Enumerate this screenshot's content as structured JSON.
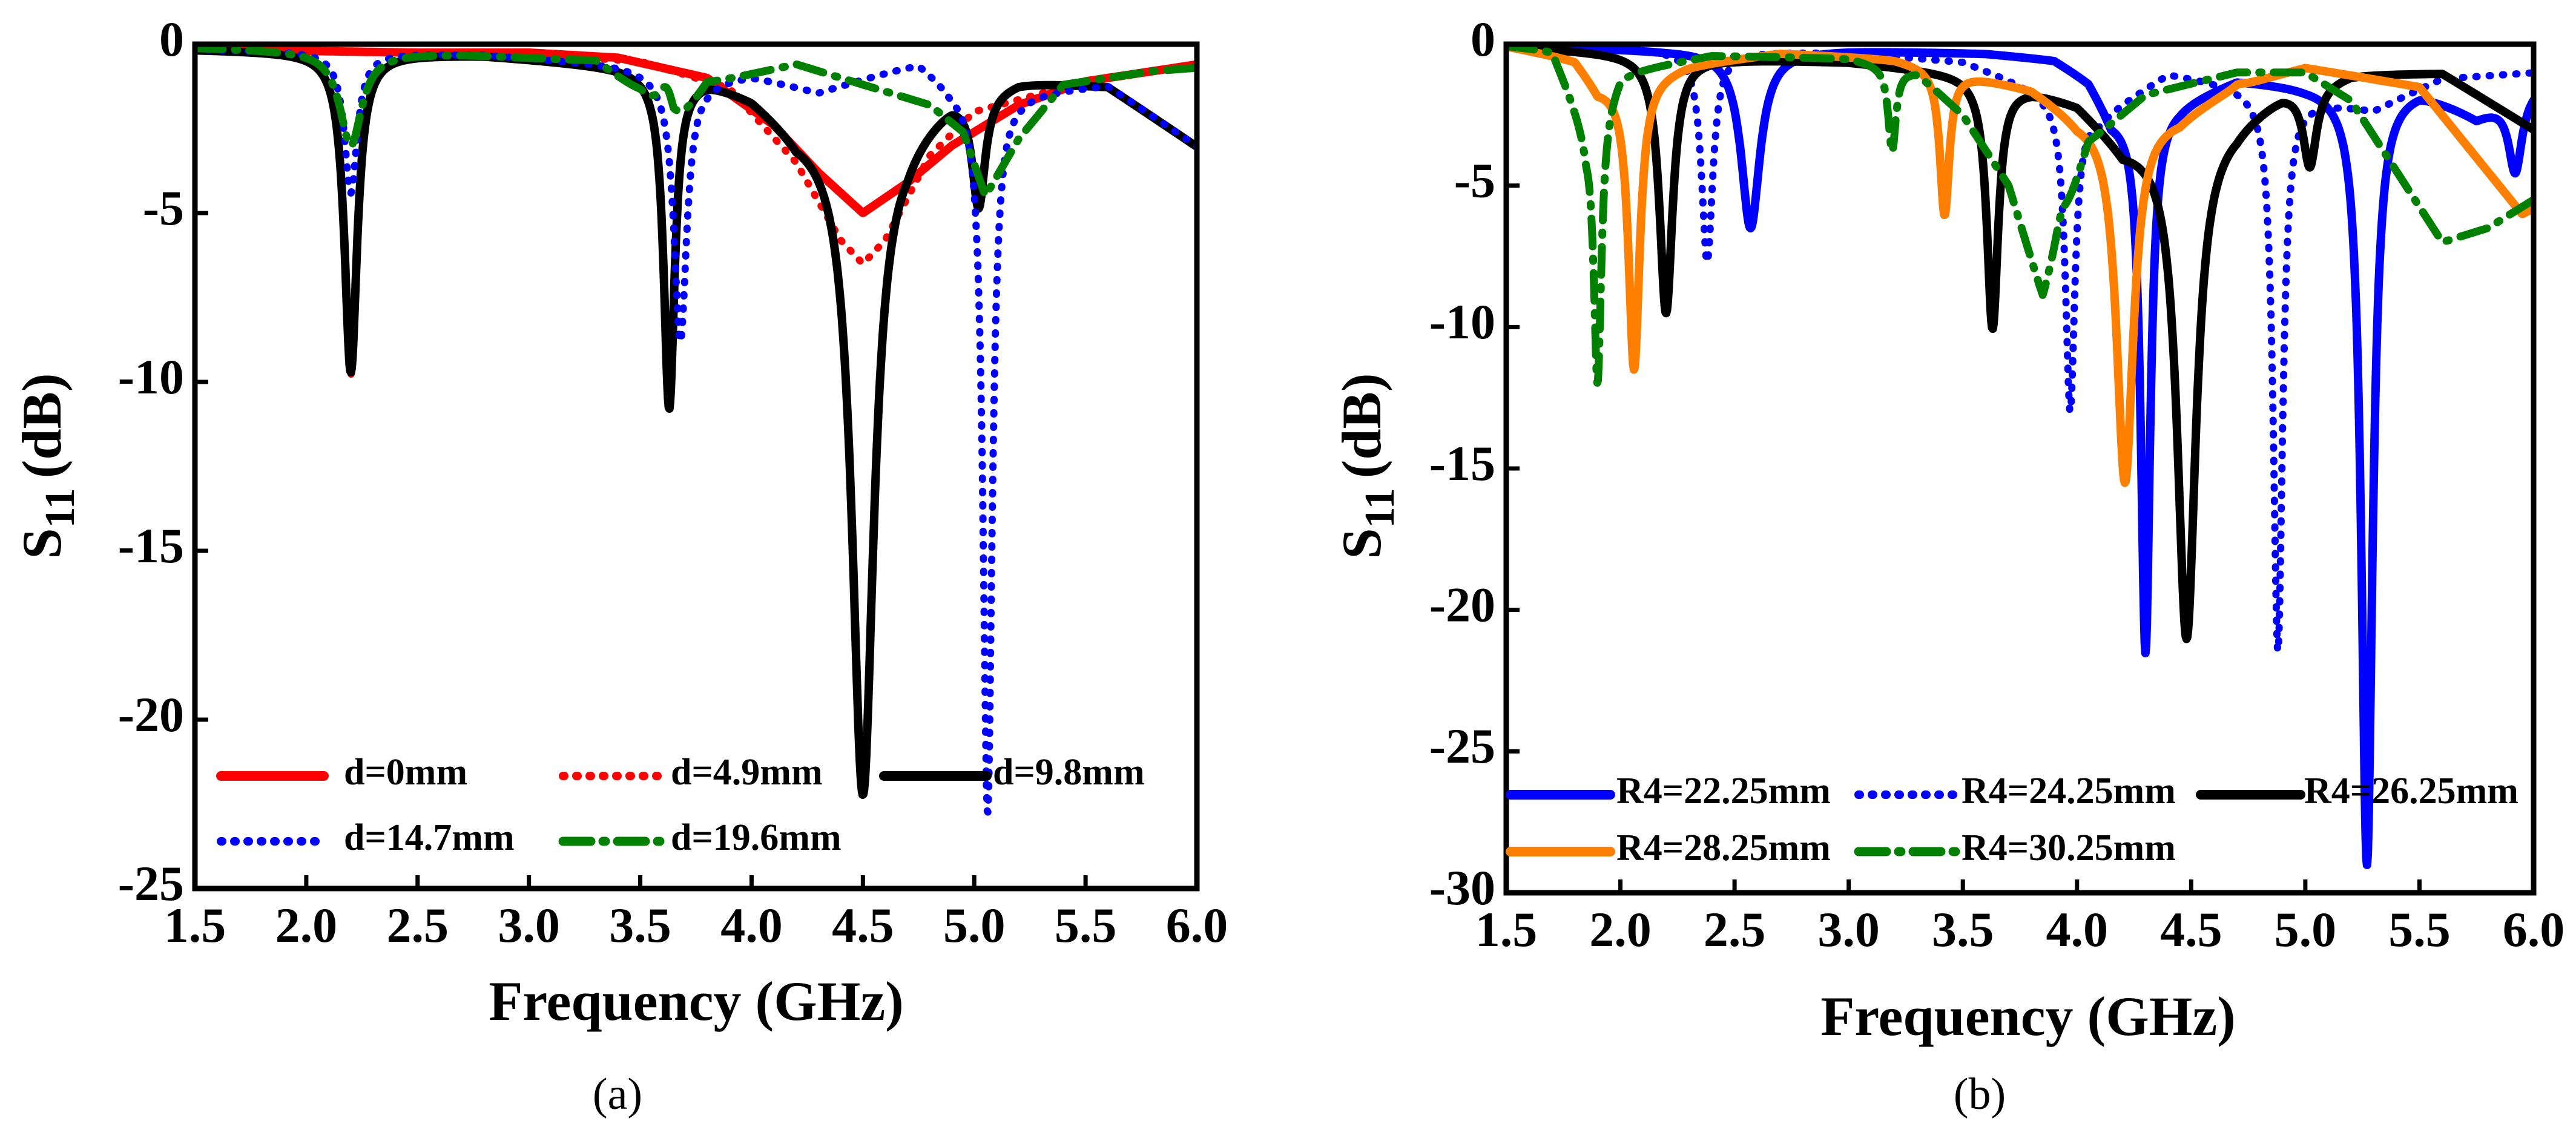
{
  "chart_data": [
    {
      "panel_label": "(a)",
      "type": "line",
      "xlabel": "Frequency (GHz)",
      "ylabel": "S11 (dB)",
      "ylabel_main": "S",
      "ylabel_sub": "11",
      "ylabel_unit": "(dB)",
      "xlim": [
        1.5,
        6.0
      ],
      "ylim": [
        -25,
        0
      ],
      "x_ticks": [
        "1.5",
        "2.0",
        "2.5",
        "3.0",
        "3.5",
        "4.0",
        "4.5",
        "5.0",
        "5.5",
        "6.0"
      ],
      "y_ticks": [
        "0",
        "-5",
        "-10",
        "-15",
        "-20",
        "-25"
      ],
      "grid": false,
      "legend_position": "lower-center",
      "series": [
        {
          "name": "d=0mm",
          "color": "#ff0000",
          "style": "solid",
          "base": [
            [
              1.5,
              -0.1
            ],
            [
              2.0,
              -0.2
            ],
            [
              2.5,
              -0.25
            ],
            [
              3.0,
              -0.25
            ],
            [
              3.4,
              -0.4
            ],
            [
              3.8,
              -1.0
            ],
            [
              4.1,
              -2.4
            ],
            [
              4.3,
              -3.8
            ],
            [
              4.5,
              -5.0
            ],
            [
              4.7,
              -4.1
            ],
            [
              4.9,
              -3.0
            ],
            [
              5.2,
              -1.8
            ],
            [
              5.5,
              -1.1
            ],
            [
              6.0,
              -0.6
            ]
          ],
          "dips": []
        },
        {
          "name": "d=4.9mm",
          "color": "#ff0000",
          "style": "dotted",
          "base": [
            [
              1.5,
              -0.1
            ],
            [
              2.5,
              -0.25
            ],
            [
              3.0,
              -0.3
            ],
            [
              3.5,
              -0.5
            ],
            [
              3.9,
              -1.3
            ],
            [
              4.2,
              -3.5
            ],
            [
              4.4,
              -5.8
            ],
            [
              4.5,
              -6.5
            ],
            [
              4.6,
              -5.8
            ],
            [
              4.8,
              -3.3
            ],
            [
              5.0,
              -2.0
            ],
            [
              5.5,
              -1.1
            ],
            [
              6.0,
              -0.6
            ]
          ],
          "dips": [
            [
              2.2,
              -9.8,
              0.035
            ]
          ]
        },
        {
          "name": "d=9.8mm",
          "color": "#000000",
          "style": "solid",
          "base": [
            [
              1.5,
              -0.15
            ],
            [
              2.8,
              -0.3
            ],
            [
              3.4,
              -0.6
            ],
            [
              3.8,
              -0.9
            ],
            [
              4.0,
              -1.4
            ],
            [
              4.2,
              -2.4
            ],
            [
              4.7,
              -2.4
            ],
            [
              4.9,
              -1.4
            ],
            [
              5.2,
              -1.0
            ],
            [
              5.6,
              -1.2
            ],
            [
              6.0,
              -3.0
            ]
          ],
          "dips": [
            [
              2.2,
              -9.7,
              0.035
            ],
            [
              3.63,
              -10.7,
              0.03
            ],
            [
              4.5,
              -22.2,
              0.06
            ],
            [
              5.02,
              -4.6,
              0.035
            ]
          ]
        },
        {
          "name": "d=14.7mm",
          "color": "#0000ff",
          "style": "dotted",
          "base": [
            [
              1.5,
              -0.15
            ],
            [
              2.8,
              -0.3
            ],
            [
              3.4,
              -0.6
            ],
            [
              3.8,
              -1.0
            ],
            [
              4.0,
              -0.9
            ],
            [
              4.3,
              -1.4
            ],
            [
              4.5,
              -1.0
            ],
            [
              4.75,
              -0.5
            ],
            [
              4.9,
              -1.2
            ],
            [
              5.2,
              -1.4
            ],
            [
              5.6,
              -1.2
            ],
            [
              6.0,
              -3.0
            ]
          ],
          "dips": [
            [
              2.2,
              -4.4,
              0.035
            ],
            [
              3.68,
              -8.8,
              0.035
            ],
            [
              5.06,
              -22.8,
              0.025
            ]
          ]
        },
        {
          "name": "d=19.6mm",
          "color": "#008000",
          "style": "dashdot",
          "base": [
            [
              1.5,
              -0.1
            ],
            [
              2.7,
              -0.3
            ],
            [
              3.3,
              -0.5
            ],
            [
              3.5,
              -1.5
            ],
            [
              3.65,
              -2.8
            ],
            [
              3.8,
              -1.2
            ],
            [
              4.2,
              -0.6
            ],
            [
              4.5,
              -1.2
            ],
            [
              4.8,
              -1.8
            ],
            [
              4.95,
              -2.6
            ],
            [
              5.05,
              -4.5
            ],
            [
              5.2,
              -2.8
            ],
            [
              5.4,
              -1.2
            ],
            [
              5.8,
              -0.8
            ],
            [
              6.0,
              -0.7
            ]
          ],
          "dips": [
            [
              2.2,
              -3.0,
              0.06
            ],
            [
              3.62,
              -1.3,
              0.05
            ]
          ]
        }
      ]
    },
    {
      "panel_label": "(b)",
      "type": "line",
      "xlabel": "Frequency (GHz)",
      "ylabel": "S11 (dB)",
      "ylabel_main": "S",
      "ylabel_sub": "11",
      "ylabel_unit": "(dB)",
      "xlim": [
        1.5,
        6.0
      ],
      "ylim": [
        -30,
        0
      ],
      "x_ticks": [
        "1.5",
        "2.0",
        "2.5",
        "3.0",
        "3.5",
        "4.0",
        "4.5",
        "5.0",
        "5.5",
        "6.0"
      ],
      "y_ticks": [
        "0",
        "-5",
        "-10",
        "-15",
        "-20",
        "-25",
        "-30"
      ],
      "grid": false,
      "legend_position": "lower-left",
      "series": [
        {
          "name": "R4=22.25mm",
          "color": "#0000ff",
          "style": "solid",
          "base": [
            [
              1.5,
              -0.05
            ],
            [
              2.2,
              -0.2
            ],
            [
              3.0,
              -0.2
            ],
            [
              3.6,
              -0.3
            ],
            [
              3.9,
              -0.5
            ],
            [
              4.05,
              -1.2
            ],
            [
              4.15,
              -2.5
            ],
            [
              4.45,
              -2.0
            ],
            [
              4.7,
              -1.2
            ],
            [
              5.0,
              -1.4
            ],
            [
              5.5,
              -1.5
            ],
            [
              5.75,
              -2.5
            ],
            [
              6.0,
              -1.5
            ]
          ],
          "dips": [
            [
              2.57,
              -6.5,
              0.05
            ],
            [
              4.3,
              -21.5,
              0.025
            ],
            [
              5.27,
              -29.0,
              0.03
            ],
            [
              5.92,
              -4.5,
              0.035
            ]
          ]
        },
        {
          "name": "R4=24.25mm",
          "color": "#0000ff",
          "style": "dotted",
          "base": [
            [
              1.5,
              -0.05
            ],
            [
              2.0,
              -0.15
            ],
            [
              3.0,
              -0.3
            ],
            [
              3.5,
              -0.6
            ],
            [
              3.8,
              -1.5
            ],
            [
              4.1,
              -2.5
            ],
            [
              4.4,
              -1.0
            ],
            [
              4.7,
              -1.4
            ],
            [
              4.95,
              -1.8
            ],
            [
              5.3,
              -2.3
            ],
            [
              5.6,
              -1.2
            ],
            [
              6.0,
              -1.0
            ]
          ],
          "dips": [
            [
              2.38,
              -7.7,
              0.03
            ],
            [
              3.97,
              -13.0,
              0.025
            ],
            [
              4.88,
              -21.5,
              0.025
            ]
          ]
        },
        {
          "name": "R4=26.25mm",
          "color": "#000000",
          "style": "solid",
          "base": [
            [
              1.5,
              -0.05
            ],
            [
              1.8,
              -0.2
            ],
            [
              2.5,
              -0.5
            ],
            [
              3.0,
              -0.6
            ],
            [
              3.5,
              -1.0
            ],
            [
              3.8,
              -1.5
            ],
            [
              4.0,
              -2.0
            ],
            [
              4.2,
              -3.5
            ],
            [
              4.7,
              -2.6
            ],
            [
              4.9,
              -1.6
            ],
            [
              5.2,
              -1.0
            ],
            [
              5.6,
              -1.0
            ],
            [
              6.0,
              -3.0
            ]
          ],
          "dips": [
            [
              2.2,
              -9.5,
              0.035
            ],
            [
              3.63,
              -10.0,
              0.03
            ],
            [
              4.48,
              -21.0,
              0.05
            ],
            [
              5.02,
              -4.2,
              0.035
            ]
          ]
        },
        {
          "name": "R4=28.25mm",
          "color": "#ff8000",
          "style": "solid",
          "base": [
            [
              1.5,
              -0.05
            ],
            [
              1.8,
              -0.5
            ],
            [
              1.9,
              -1.5
            ],
            [
              2.3,
              -0.7
            ],
            [
              2.7,
              -0.3
            ],
            [
              3.2,
              -0.5
            ],
            [
              3.5,
              -1.0
            ],
            [
              3.8,
              -1.5
            ],
            [
              4.0,
              -2.5
            ],
            [
              4.45,
              -2.5
            ],
            [
              4.7,
              -1.4
            ],
            [
              5.0,
              -0.8
            ],
            [
              5.5,
              -1.5
            ],
            [
              5.8,
              -4.5
            ],
            [
              5.95,
              -6.0
            ],
            [
              6.0,
              -5.8
            ]
          ],
          "dips": [
            [
              2.06,
              -11.5,
              0.03
            ],
            [
              3.42,
              -6.0,
              0.025
            ],
            [
              4.21,
              -15.5,
              0.045
            ],
            [
              4.71,
              -1.3,
              0.03
            ]
          ]
        },
        {
          "name": "R4=30.25mm",
          "color": "#008000",
          "style": "dashdot",
          "base": [
            [
              1.5,
              -0.05
            ],
            [
              1.7,
              -0.2
            ],
            [
              1.85,
              -3.0
            ],
            [
              2.0,
              -1.0
            ],
            [
              2.4,
              -0.4
            ],
            [
              3.0,
              -0.5
            ],
            [
              3.3,
              -1.0
            ],
            [
              3.5,
              -2.5
            ],
            [
              3.7,
              -5.0
            ],
            [
              3.85,
              -9.0
            ],
            [
              4.05,
              -3.5
            ],
            [
              4.3,
              -1.8
            ],
            [
              4.7,
              -1.0
            ],
            [
              5.0,
              -1.0
            ],
            [
              5.2,
              -2.0
            ],
            [
              5.4,
              -4.5
            ],
            [
              5.6,
              -7.0
            ],
            [
              5.8,
              -6.5
            ],
            [
              6.0,
              -5.5
            ]
          ],
          "dips": [
            [
              1.9,
              -12.0,
              0.02
            ],
            [
              3.19,
              -3.8,
              0.02
            ],
            [
              3.93,
              -6.0,
              0.035
            ]
          ]
        }
      ]
    }
  ]
}
